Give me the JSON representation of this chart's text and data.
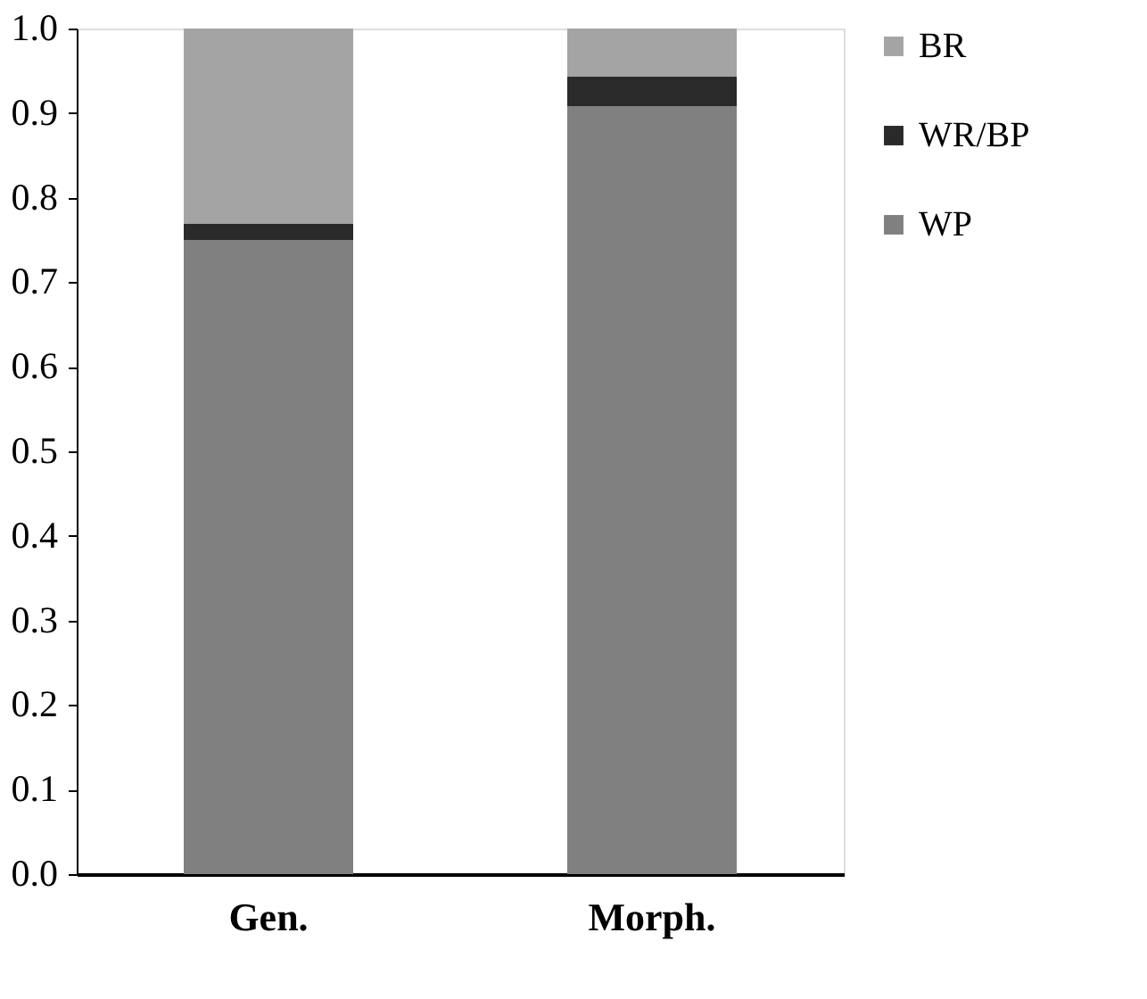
{
  "chart_data": {
    "type": "bar",
    "stacked": true,
    "categories": [
      "Gen.",
      "Morph."
    ],
    "series": [
      {
        "name": "WP",
        "color": "#808080",
        "values": [
          0.75,
          0.908
        ]
      },
      {
        "name": "WR/BP",
        "color": "#2a2a2a",
        "values": [
          0.019,
          0.035
        ]
      },
      {
        "name": "BR",
        "color": "#a4a4a4",
        "values": [
          0.231,
          0.057
        ]
      }
    ],
    "ylim": [
      0,
      1
    ],
    "yticks": [
      {
        "value": 0,
        "label": "0.0"
      },
      0.1,
      0.2,
      0.3,
      0.4,
      0.5,
      0.6,
      0.7,
      0.8,
      0.9,
      {
        "value": 1,
        "label": "1.0"
      }
    ],
    "grid": false,
    "legend": "right"
  }
}
